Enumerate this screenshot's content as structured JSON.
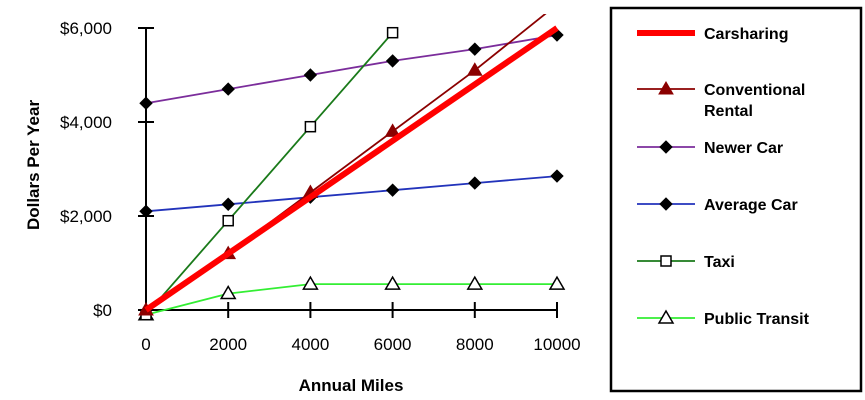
{
  "chart_data": {
    "type": "line",
    "title": "",
    "xlabel": "Annual Miles",
    "ylabel": "Dollars Per Year",
    "x": [
      0,
      2000,
      4000,
      6000,
      8000,
      10000
    ],
    "xlim": [
      0,
      10000
    ],
    "ylim": [
      0,
      6000
    ],
    "x_tick_labels": [
      "0",
      "2000",
      "4000",
      "6000",
      "8000",
      "10000"
    ],
    "y_ticks": [
      0,
      2000,
      4000,
      6000
    ],
    "y_tick_labels": [
      "$0",
      "$2,000",
      "$4,000",
      "$6,000"
    ],
    "grid": false,
    "legend_position": "right",
    "series": [
      {
        "name": "Carsharing",
        "color": "#ff0000",
        "marker": "none",
        "x": [
          0,
          10000
        ],
        "values": [
          0,
          6000
        ]
      },
      {
        "name": "Conventional Rental",
        "color": "#8b0000",
        "marker": "triangle-filled",
        "x": [
          0,
          2000,
          4000,
          6000,
          8000,
          10000
        ],
        "values": [
          0,
          1200,
          2500,
          3800,
          5100,
          6500
        ]
      },
      {
        "name": "Newer Car",
        "color": "#7b2d9b",
        "marker": "diamond-filled",
        "x": [
          0,
          2000,
          4000,
          6000,
          8000,
          10000
        ],
        "values": [
          4400,
          4700,
          5000,
          5300,
          5550,
          5850
        ]
      },
      {
        "name": "Average Car",
        "color": "#2233bb",
        "marker": "diamond-filled",
        "x": [
          0,
          2000,
          4000,
          6000,
          8000,
          10000
        ],
        "values": [
          2100,
          2250,
          2400,
          2550,
          2700,
          2850
        ]
      },
      {
        "name": "Taxi",
        "color": "#1a7a1a",
        "marker": "square-open",
        "x": [
          0,
          2000,
          4000,
          6000
        ],
        "values": [
          -100,
          1900,
          3900,
          5900
        ]
      },
      {
        "name": "Public Transit",
        "color": "#33ee33",
        "marker": "triangle-open",
        "x": [
          0,
          2000,
          4000,
          6000,
          8000,
          10000
        ],
        "values": [
          -100,
          350,
          550,
          550,
          550,
          550
        ]
      }
    ]
  }
}
